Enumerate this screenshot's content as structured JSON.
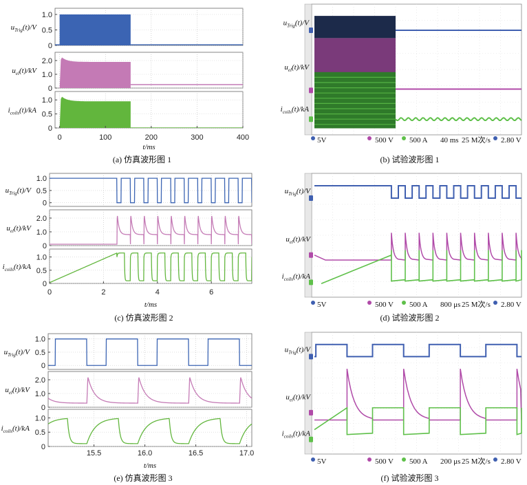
{
  "chart_data": [
    {
      "type": "line",
      "caption": "(a) 仿真波形图 1",
      "xlabel": "t/ms",
      "xlim": [
        -10,
        400
      ],
      "xticks": [
        "0",
        "100",
        "200",
        "300",
        "400"
      ],
      "panels": [
        {
          "ylabel": "uTrig(t)/V",
          "ylim": [
            0,
            1.2
          ],
          "yticks": [
            "0",
            "0.5",
            "1.0"
          ],
          "color": "#3b64b3",
          "shape": "pwm_band",
          "active_until": 155,
          "high": 1.0
        },
        {
          "ylabel": "uel(t)/kV",
          "ylim": [
            0,
            2.6
          ],
          "yticks": [
            "0",
            "1.0",
            "2.0"
          ],
          "color": "#c47ab5",
          "shape": "decay_band",
          "active_until": 155,
          "peak": 2.4,
          "end": 1.9,
          "rest": 0.25
        },
        {
          "ylabel": "icoils(t)/kA",
          "ylim": [
            0,
            1.3
          ],
          "yticks": [
            "0",
            "0.5",
            "1.0"
          ],
          "color": "#62b63d",
          "shape": "current_band",
          "active_until": 155,
          "peak": 1.2,
          "end": 0.95,
          "rest": 0.0
        }
      ]
    },
    {
      "type": "line",
      "caption": "(b) 试验波形图 1",
      "labels": [
        "uTrig(t)/V",
        "uel(t)/kV",
        "icoils(t)/kA"
      ],
      "readout": [
        "5V",
        "500 V",
        "500 A",
        "40 ms",
        "25 M次/s",
        "2.80 V"
      ]
    },
    {
      "type": "line",
      "caption": "(c) 仿真波形图 2",
      "xlabel": "t/ms",
      "xlim": [
        0,
        7.5
      ],
      "xticks": [
        "0",
        "2",
        "4",
        "6"
      ],
      "panels": [
        {
          "ylabel": "uTrig(t)/V",
          "ylim": [
            -0.15,
            1.2
          ],
          "yticks": [
            "0",
            "0.5",
            "1.0"
          ],
          "color": "#3b64b3",
          "shape": "square",
          "start": 2.5,
          "period": 0.5,
          "duty": 0.7,
          "high": 1.0,
          "low": 0.0,
          "pre": 1.0
        },
        {
          "ylabel": "uel(t)/kV",
          "ylim": [
            0,
            2.6
          ],
          "yticks": [
            "0",
            "1.0",
            "2.0"
          ],
          "color": "#c47ab5",
          "shape": "spikes",
          "start": 2.5,
          "period": 0.5,
          "peak": 2.3,
          "plateau": 0.8,
          "rest": 0.1
        },
        {
          "ylabel": "icoils(t)/kA",
          "ylim": [
            0,
            1.3
          ],
          "yticks": [
            "0",
            "0.5",
            "1.0"
          ],
          "color": "#62b63d",
          "shape": "ramp_then_pulses",
          "start": 2.5,
          "period": 0.5,
          "peak": 1.15,
          "low": 0.1,
          "ramp_top": 1.15
        }
      ]
    },
    {
      "type": "line",
      "caption": "(d) 试验波形图 2",
      "labels": [
        "uTrig(t)/V",
        "uel(t)/kV",
        "icoils(t)/kA"
      ],
      "readout": [
        "5V",
        "500 V",
        "500 A",
        "800 μs",
        "25 M次/s",
        "2.80 V"
      ]
    },
    {
      "type": "line",
      "caption": "(e) 仿真波形图 3",
      "xlabel": "t/ms",
      "xlim": [
        15.05,
        17.05
      ],
      "xticks": [
        "15.5",
        "16.0",
        "16.5",
        "17.0"
      ],
      "panels": [
        {
          "ylabel": "uTrig(t)/V",
          "ylim": [
            -0.15,
            1.2
          ],
          "yticks": [
            "0",
            "0.5",
            "1.0"
          ],
          "color": "#3b64b3",
          "shape": "square",
          "start": 14.93,
          "period": 0.5,
          "duty": 0.62,
          "high": 1.0,
          "low": 0.0,
          "pre": 0.0
        },
        {
          "ylabel": "uel(t)/kV",
          "ylim": [
            0,
            2.6
          ],
          "yticks": [
            "0",
            "1.0",
            "2.0"
          ],
          "color": "#c47ab5",
          "shape": "spikes",
          "start": 14.93,
          "period": 0.5,
          "peak": 2.2,
          "plateau": 0.3,
          "rest": 0.3
        },
        {
          "ylabel": "icoils(t)/kA",
          "ylim": [
            0,
            1.3
          ],
          "yticks": [
            "0",
            "0.5",
            "1.0"
          ],
          "color": "#62b63d",
          "shape": "sawtooth",
          "start": 14.93,
          "period": 0.5,
          "peak": 1.0,
          "low": 0.1
        }
      ]
    },
    {
      "type": "line",
      "caption": "(f) 试验波形图 3",
      "labels": [
        "uTrig(t)/V",
        "uel(t)/kV",
        "icoils(t)/kA"
      ],
      "readout": [
        "5V",
        "500 V",
        "500 A",
        "200 μs",
        "25 M次/s",
        "2.80 V"
      ]
    }
  ]
}
